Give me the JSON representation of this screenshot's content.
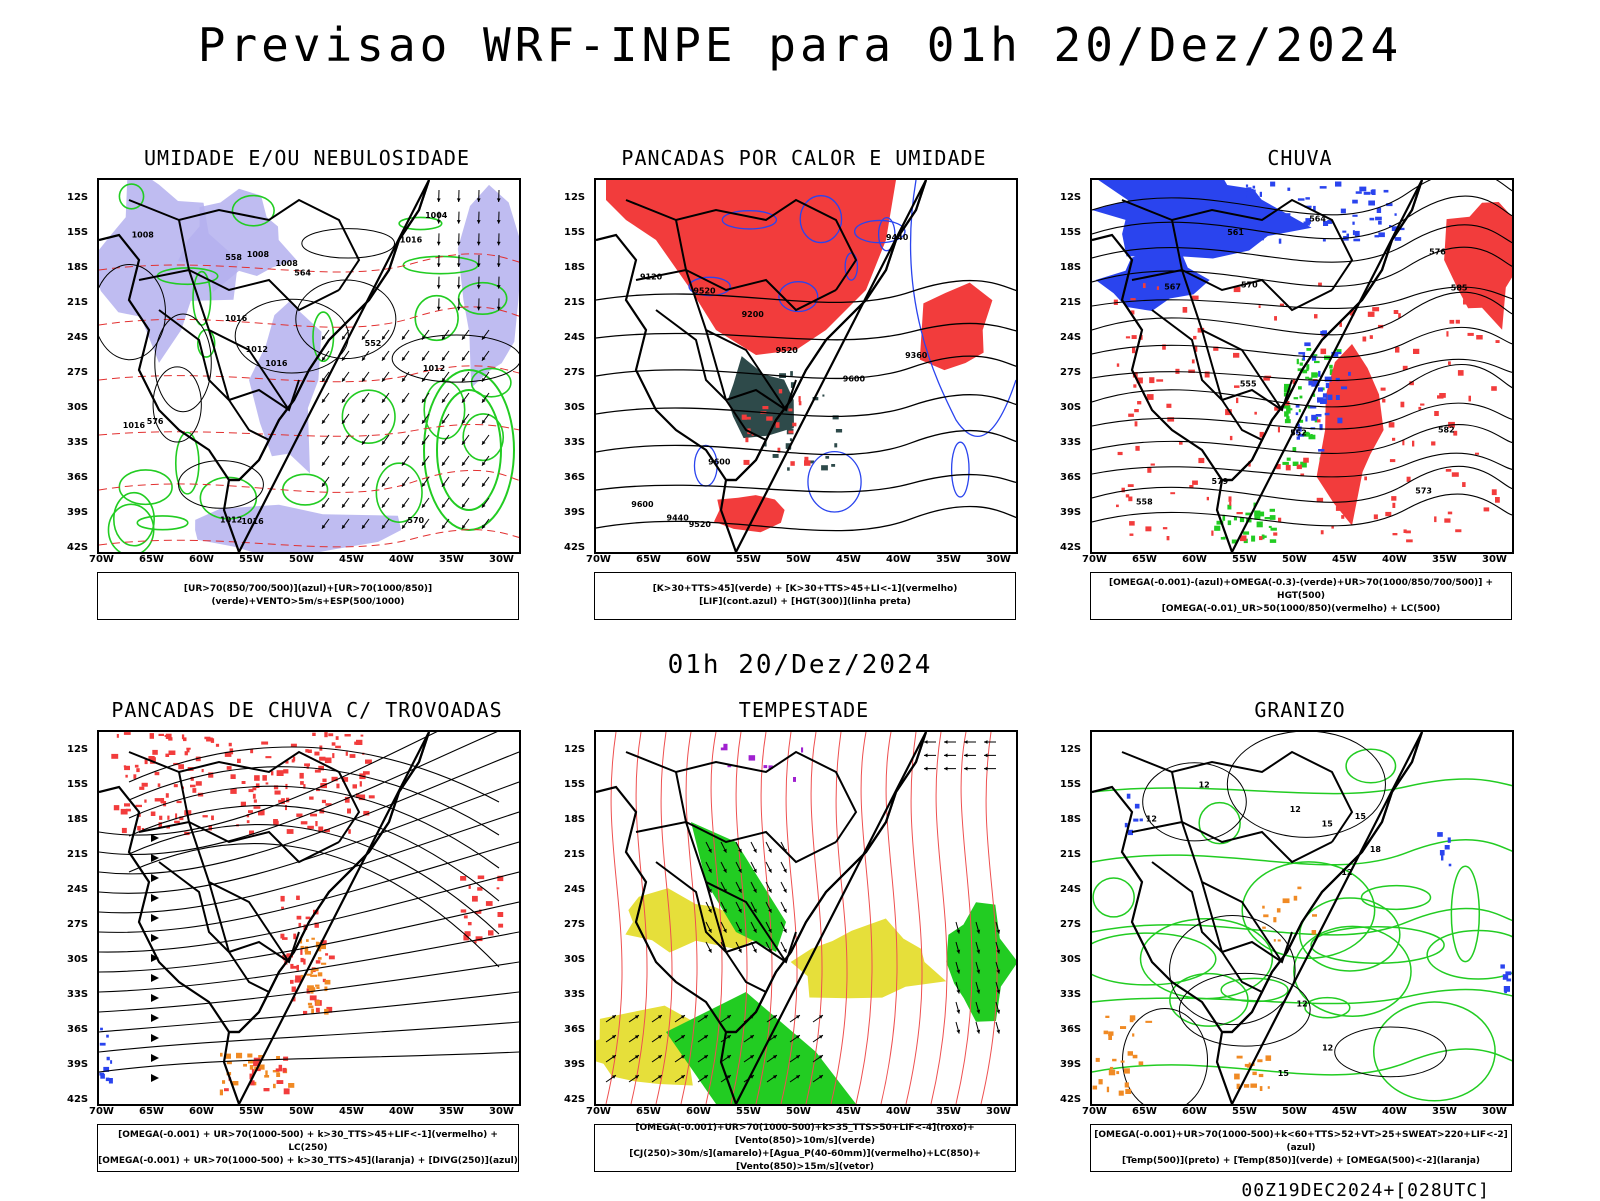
{
  "title": "Previsao WRF-INPE  para 01h 20/Dez/2024",
  "subtitle": "01h 20/Dez/2024",
  "footer": "00Z19DEC2024+[028UTC]",
  "axes": {
    "lat": [
      "12S",
      "15S",
      "18S",
      "21S",
      "24S",
      "27S",
      "30S",
      "33S",
      "36S",
      "39S",
      "42S"
    ],
    "lon": [
      "70W",
      "65W",
      "60W",
      "55W",
      "50W",
      "45W",
      "40W",
      "35W",
      "30W"
    ]
  },
  "colors": {
    "red": "#f23c3c",
    "green": "#22cc22",
    "blue": "#2a44ee",
    "lavender": "#b4b0ee",
    "yellow": "#e6df3a",
    "orange": "#f08a24",
    "teal": "#2e4a4a",
    "purple": "#a020d0"
  },
  "panels": [
    {
      "id": "umidade",
      "title": "UMIDADE E/OU NEBULOSIDADE",
      "caption": [
        "[UR>70(850/700/500)](azul)+[UR>70(1000/850)](verde)+VENTO>5m/s+ESP(500/1000)"
      ],
      "contour_labels": [
        "1016",
        "1016",
        "1012",
        "1008",
        "1008",
        "1012",
        "1012",
        "1016",
        "1016",
        "1004",
        "1008",
        "1016",
        "576",
        "570",
        "564",
        "558",
        "552"
      ]
    },
    {
      "id": "pancadas-calor",
      "title": "PANCADAS POR CALOR E UMIDADE",
      "caption": [
        "[K>30+TTS>45](verde) + [K>30+TTS>45+LI<-1](vermelho)",
        "[LIF](cont.azul) + [HGT(300)](linha preta)"
      ],
      "contour_labels": [
        "9600",
        "9600",
        "9520",
        "9520",
        "9440",
        "9440",
        "9360",
        "9200",
        "9120",
        "9600",
        "9520"
      ]
    },
    {
      "id": "chuva",
      "title": "CHUVA",
      "caption": [
        "[OMEGA(-0.001)-(azul)+OMEGA(-0.3)-(verde)+UR>70(1000/850/700/500)] + HGT(500)",
        "[OMEGA(-0.01)_UR>50(1000/850)(vermelho) + LC(500)"
      ],
      "contour_labels": [
        "585",
        "582",
        "579",
        "576",
        "573",
        "570",
        "567",
        "564",
        "561",
        "558",
        "555",
        "552"
      ]
    },
    {
      "id": "trovoadas",
      "title": "PANCADAS DE CHUVA C/ TROVOADAS",
      "caption": [
        "[OMEGA(-0.001) + UR>70(1000-500) + k>30_TTS>45+LIF<-1](vermelho) + LC(250)",
        "[OMEGA(-0.001) + UR>70(1000-500) + k>30_TTS>45](laranja) + [DIVG(250)](azul)"
      ],
      "contour_labels": []
    },
    {
      "id": "tempestade",
      "title": "TEMPESTADE",
      "caption": [
        "[OMEGA(-0.001)+UR>70(1000-500)+k>35_TTS>50+LIF<-4](roxo)+[Vento(850)>10m/s](verde)",
        "[CJ(250)>30m/s](amarelo)+[Agua_P(40-60mm)](vermelho)+LC(850)+[Vento(850)>15m/s](vetor)"
      ],
      "contour_labels": []
    },
    {
      "id": "granizo",
      "title": "GRANIZO",
      "caption": [
        "[OMEGA(-0.001)+UR>70(1000-500)+k<60+TTS>52+VT>25+SWEAT>220+LIF<-2](azul)",
        "[Temp(500)](preto) + [Temp(850)](verde) + [OMEGA(500)<-2](laranja)"
      ],
      "contour_labels": [
        "12",
        "12",
        "12",
        "12",
        "12",
        "15",
        "15",
        "18",
        "15",
        "12"
      ]
    }
  ]
}
